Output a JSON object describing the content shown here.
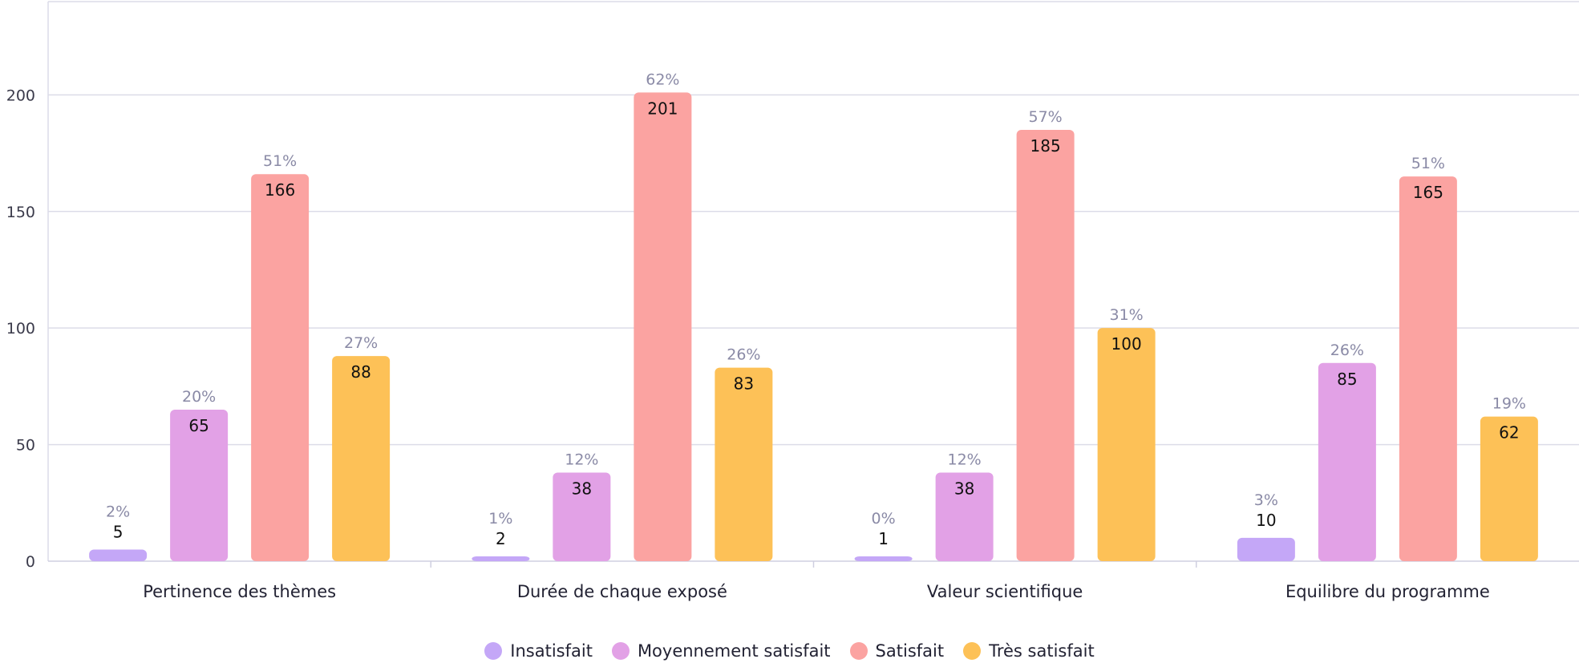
{
  "chart_data": {
    "type": "bar",
    "categories": [
      "Pertinence des thèmes",
      "Durée de chaque exposé",
      "Valeur scientifique",
      "Equilibre du programme"
    ],
    "series": [
      {
        "name": "Insatisfait",
        "color": "#c4a7f7",
        "values": [
          5,
          2,
          1,
          10
        ],
        "percents": [
          "2%",
          "1%",
          "0%",
          "3%"
        ]
      },
      {
        "name": "Moyennement satisfait",
        "color": "#e2a1e6",
        "values": [
          65,
          38,
          38,
          85
        ],
        "percents": [
          "20%",
          "12%",
          "12%",
          "26%"
        ]
      },
      {
        "name": "Satisfait",
        "color": "#fba3a1",
        "values": [
          166,
          201,
          185,
          165
        ],
        "percents": [
          "51%",
          "62%",
          "57%",
          "51%"
        ]
      },
      {
        "name": "Très satisfait",
        "color": "#fdc157",
        "values": [
          88,
          83,
          100,
          62
        ],
        "percents": [
          "27%",
          "26%",
          "31%",
          "19%"
        ]
      }
    ],
    "yticks": [
      0,
      50,
      100,
      150,
      200
    ],
    "ylim": [
      0,
      240
    ],
    "grid": true,
    "legend_position": "bottom"
  }
}
